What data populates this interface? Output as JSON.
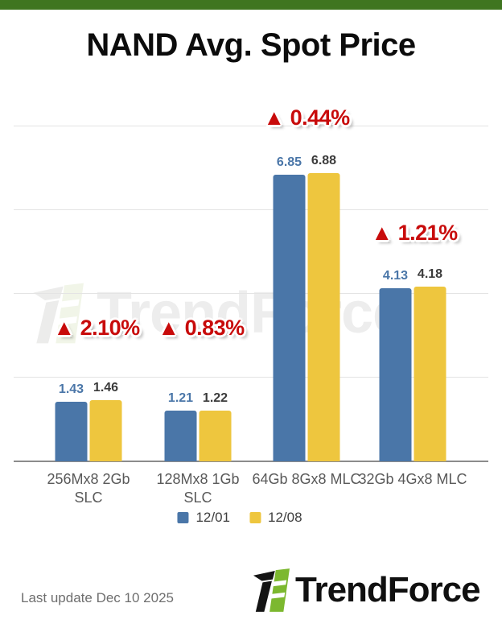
{
  "header": {
    "title": "NAND Avg. Spot Price"
  },
  "chart_data": {
    "type": "bar",
    "title": "NAND Avg. Spot Price",
    "categories": [
      "256Mx8 2Gb\nSLC",
      "128Mx8 1Gb\nSLC",
      "64Gb 8Gx8 MLC",
      "32Gb 4Gx8 MLC"
    ],
    "series": [
      {
        "name": "12/01",
        "color": "#4a76a8",
        "label_color": "#4a76a8",
        "values": [
          1.43,
          1.21,
          6.85,
          4.13
        ]
      },
      {
        "name": "12/08",
        "color": "#eec63e",
        "label_color": "#3b3b3b",
        "values": [
          1.46,
          1.22,
          6.88,
          4.18
        ]
      }
    ],
    "change_labels": [
      "▲ 2.10%",
      "▲ 0.83%",
      "▲ 0.44%",
      "▲ 1.21%"
    ],
    "xlabel": "",
    "ylabel": "",
    "ylim": [
      0,
      9
    ],
    "gridline_values": [
      2,
      4,
      6,
      8
    ],
    "grid": true,
    "legend_position": "bottom",
    "value_labels": true
  },
  "watermark": {
    "text": "TrendForce"
  },
  "footer": {
    "last_update": "Last update Dec 10 2025",
    "brand_name": "TrendForce"
  },
  "colors": {
    "accent_green": "#3f7520",
    "bar_blue": "#4a76a8",
    "bar_yellow": "#eec63e",
    "change_red": "#c80b0b",
    "grid_line": "#e4e4e4",
    "axis_line": "#8c8c8c",
    "category_text": "#595959",
    "legend_text": "#3f3f3f",
    "logo_green": "#7cb82f"
  }
}
